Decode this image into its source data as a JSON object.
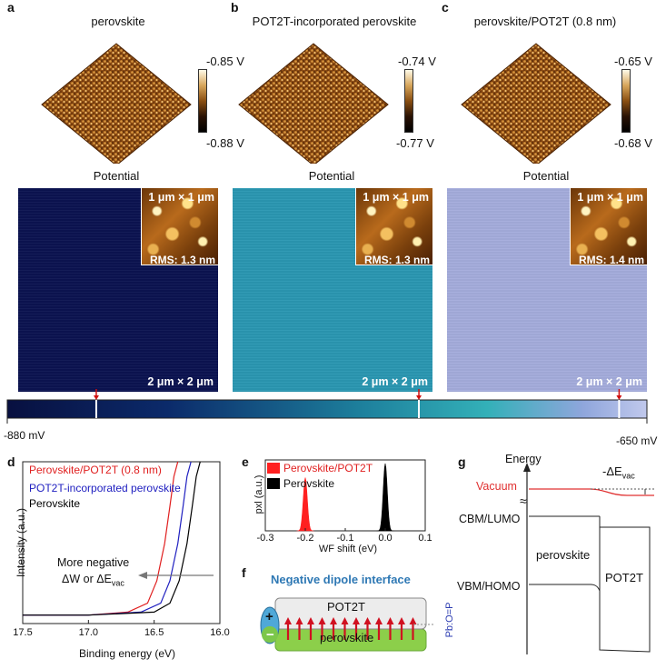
{
  "panels": {
    "a": {
      "label": "a",
      "title": "perovskite",
      "cbar_top": "-0.85 V",
      "cbar_bottom": "-0.88 V",
      "potential_label": "Potential",
      "inset_size": "1 μm × 1 μm",
      "rms": "RMS: 1.3 nm",
      "scan_size": "2 μm × 2 μm",
      "map_color": "#0b1350"
    },
    "b": {
      "label": "b",
      "title": "POT2T-incorporated perovskite",
      "cbar_top": "-0.74 V",
      "cbar_bottom": "-0.77 V",
      "potential_label": "Potential",
      "inset_size": "1 μm × 1 μm",
      "rms": "RMS: 1.3 nm",
      "scan_size": "2 μm × 2 μm",
      "map_color": "#2a97b2"
    },
    "c": {
      "label": "c",
      "title": "perovskite/POT2T (0.8 nm)",
      "cbar_top": "-0.65 V",
      "cbar_bottom": "-0.68 V",
      "potential_label": "Potential",
      "inset_size": "1 μm × 1 μm",
      "rms": "RMS: 1.4 nm",
      "scan_size": "2 μm × 2 μm",
      "map_color": "#a4acdc"
    }
  },
  "scalebar": {
    "min_label": "-880 mV",
    "max_label": "-650 mV",
    "markers_mV": [
      -848,
      -732,
      -660
    ]
  },
  "panel_d": {
    "label": "d",
    "xlabel": "Binding energy (eV)",
    "ylabel": "Intensity (a.u.)",
    "xticks": [
      "17.5",
      "17.0",
      "16.5",
      "16.0"
    ],
    "legend": [
      {
        "name": "Perovskite/POT2T (0.8 nm)",
        "color": "#e02020"
      },
      {
        "name": "POT2T-incorporated perovskite",
        "color": "#2020c0"
      },
      {
        "name": "Perovskite",
        "color": "#000000"
      }
    ],
    "annotation_line1": "More negative",
    "annotation_line2": "ΔW or ΔE",
    "annotation_sub": "vac"
  },
  "panel_e": {
    "label": "e",
    "ylabel": "pxl (a.u.)",
    "xlabel": "WF shift (eV)",
    "xticks": [
      "-0.3",
      "-0.2",
      "-0.1",
      "0.0",
      "0.1"
    ],
    "legend": [
      {
        "name": "Perovskite/POT2T",
        "color": "#ff2020"
      },
      {
        "name": "Perovskite",
        "color": "#000000"
      }
    ]
  },
  "panel_f": {
    "label": "f",
    "title": "Negative dipole interface",
    "top_layer": "POT2T",
    "bottom_layer": "perovskite",
    "plus": "+",
    "minus": "−",
    "side_label": "Pb:O=P",
    "arrow_count": 12,
    "title_color": "#2e78b4"
  },
  "panel_g": {
    "label": "g",
    "energy": "Energy",
    "vacuum": "Vacuum",
    "delta": "-ΔE",
    "delta_sub": "vac",
    "cbm": "CBM/LUMO",
    "vbm": "VBM/HOMO",
    "perovskite": "perovskite",
    "pot2t": "POT2T",
    "break_symbol": "≈"
  },
  "chart_data": [
    {
      "type": "line",
      "title": "",
      "xlabel": "Binding energy (eV)",
      "ylabel": "Intensity (a.u.)",
      "xlim": [
        17.5,
        16.0
      ],
      "series": [
        {
          "name": "Perovskite/POT2T (0.8 nm)",
          "x": [
            17.5,
            17.0,
            16.7,
            16.55,
            16.48,
            16.42,
            16.38,
            16.35,
            16.32
          ],
          "y": [
            0.02,
            0.02,
            0.04,
            0.1,
            0.25,
            0.5,
            0.75,
            0.95,
            1.1
          ]
        },
        {
          "name": "POT2T-incorporated perovskite",
          "x": [
            17.5,
            17.0,
            16.6,
            16.45,
            16.38,
            16.32,
            16.28,
            16.25,
            16.22
          ],
          "y": [
            0.02,
            0.02,
            0.04,
            0.1,
            0.25,
            0.5,
            0.75,
            0.95,
            1.1
          ]
        },
        {
          "name": "Perovskite",
          "x": [
            17.5,
            17.0,
            16.5,
            16.38,
            16.31,
            16.25,
            16.21,
            16.18,
            16.15
          ],
          "y": [
            0.02,
            0.02,
            0.04,
            0.1,
            0.25,
            0.5,
            0.75,
            0.95,
            1.1
          ]
        }
      ]
    },
    {
      "type": "bar",
      "title": "",
      "xlabel": "WF shift (eV)",
      "ylabel": "pxl (a.u.)",
      "xlim": [
        -0.3,
        0.1
      ],
      "series": [
        {
          "name": "Perovskite/POT2T",
          "center": -0.2,
          "width": 0.012,
          "height": 0.75
        },
        {
          "name": "Perovskite",
          "center": 0.0,
          "width": 0.012,
          "height": 0.95
        }
      ]
    }
  ]
}
